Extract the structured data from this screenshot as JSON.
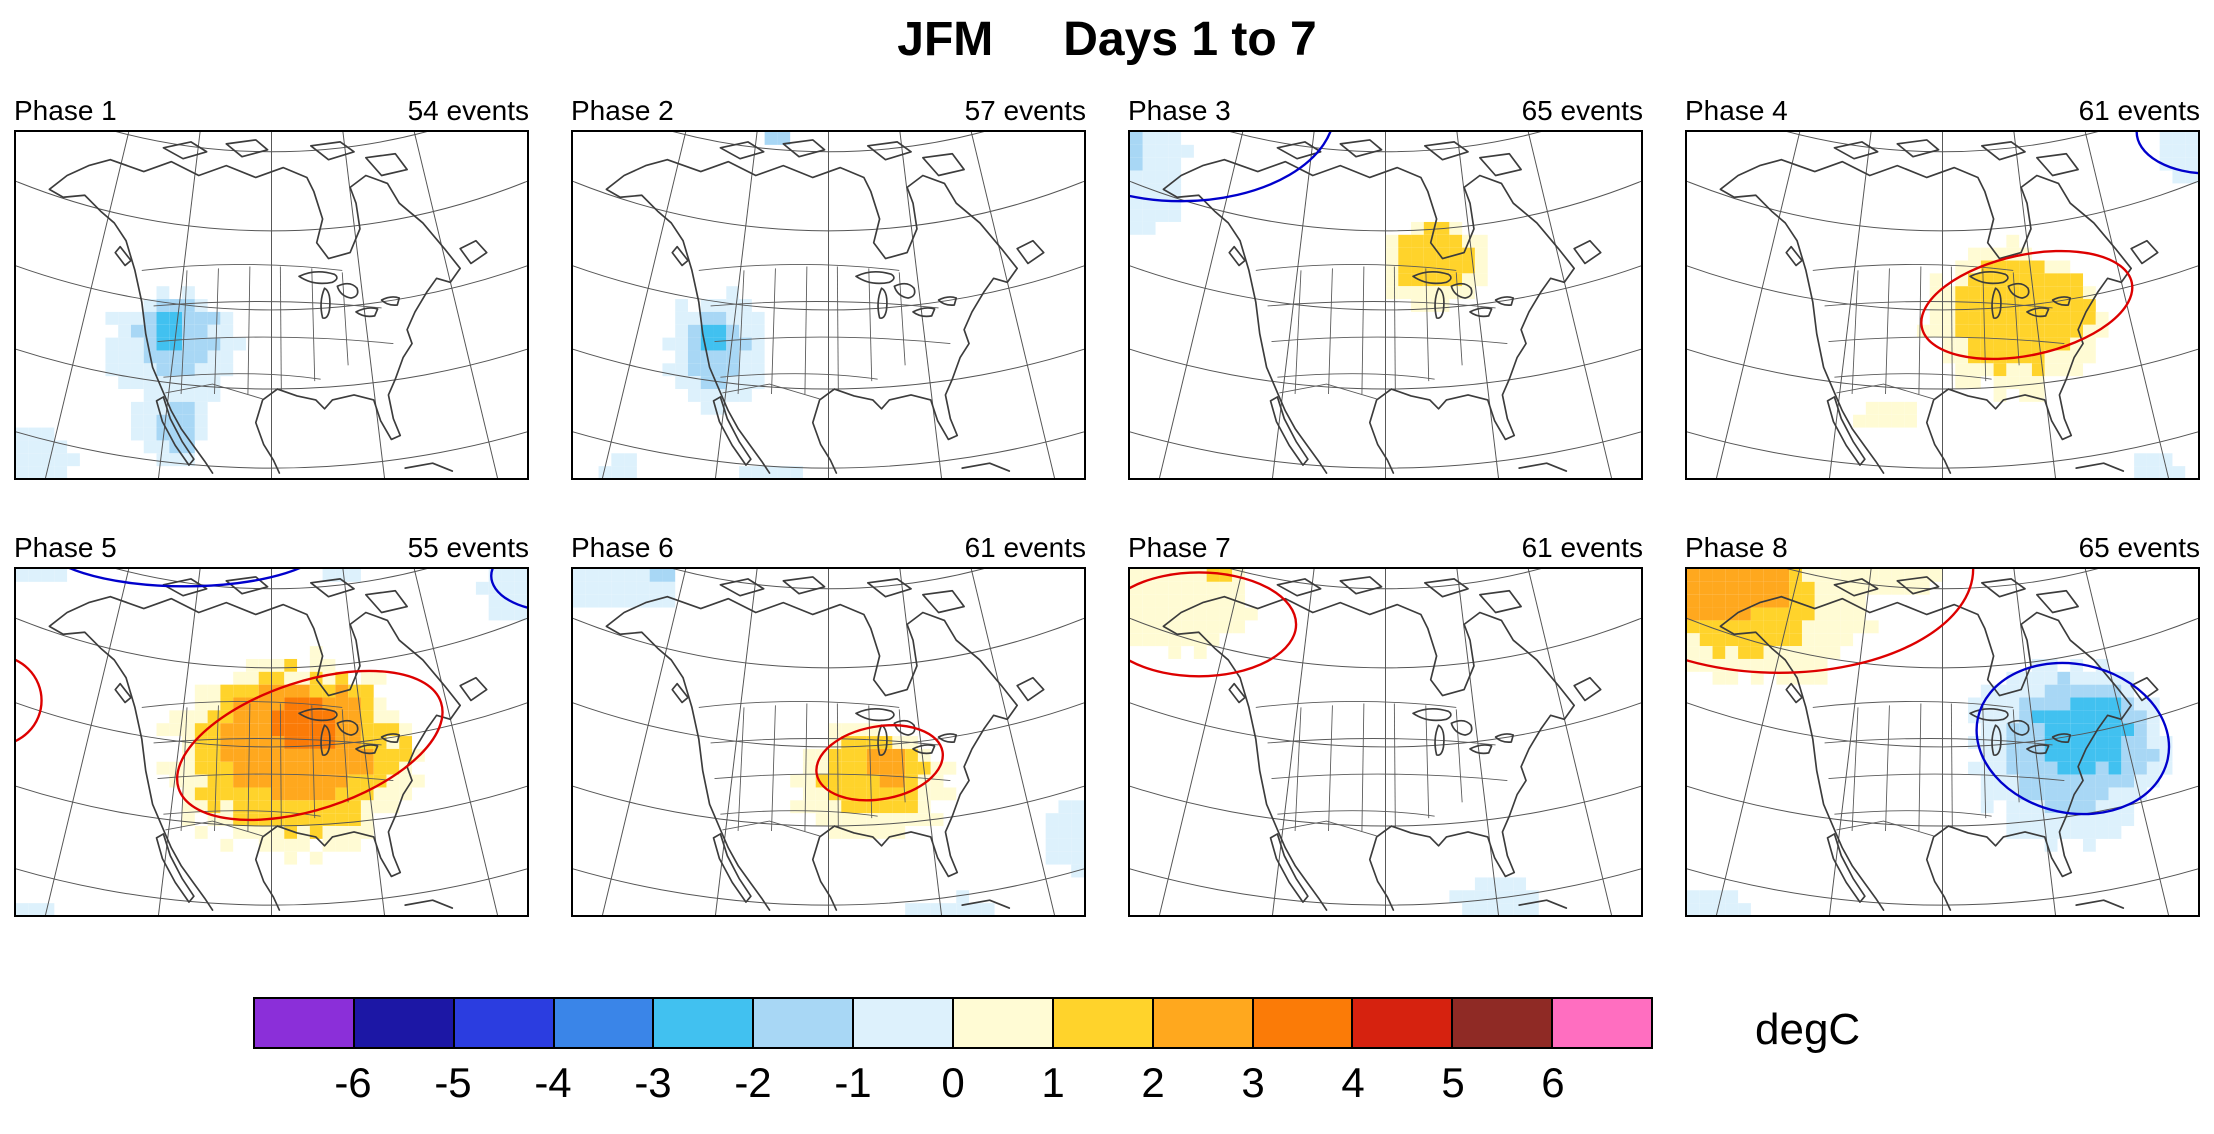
{
  "title": {
    "season": "JFM",
    "range": "Days 1 to 7"
  },
  "chart_data": {
    "type": "heatmap",
    "title": "JFM Days 1 to 7",
    "map_region": "North America",
    "panels": [
      {
        "phase": "Phase 1",
        "events_label": "54 events",
        "n_events": 54,
        "anomaly_regions": [
          {
            "v": -0.5,
            "cx": 0.31,
            "cy": 0.625,
            "rx": 0.13,
            "ry": 0.165
          },
          {
            "v": -1.5,
            "cx": 0.315,
            "cy": 0.6,
            "rx": 0.085,
            "ry": 0.105
          },
          {
            "v": -2.5,
            "cx": 0.3,
            "cy": 0.575,
            "rx": 0.035,
            "ry": 0.05
          },
          {
            "v": -0.5,
            "cx": 0.3,
            "cy": 0.85,
            "rx": 0.07,
            "ry": 0.11
          },
          {
            "v": -1.5,
            "cx": 0.315,
            "cy": 0.85,
            "rx": 0.035,
            "ry": 0.075
          },
          {
            "v": -0.5,
            "cx": 0.04,
            "cy": 0.93,
            "rx": 0.075,
            "ry": 0.07
          }
        ],
        "contours": []
      },
      {
        "phase": "Phase 2",
        "events_label": "57 events",
        "n_events": 57,
        "anomaly_regions": [
          {
            "v": -0.5,
            "cx": 0.285,
            "cy": 0.64,
            "rx": 0.105,
            "ry": 0.165
          },
          {
            "v": -1.5,
            "cx": 0.28,
            "cy": 0.635,
            "rx": 0.06,
            "ry": 0.11
          },
          {
            "v": -2.5,
            "cx": 0.275,
            "cy": 0.6,
            "rx": 0.028,
            "ry": 0.045
          },
          {
            "v": -1.5,
            "cx": 0.4,
            "cy": 0.01,
            "rx": 0.028,
            "ry": 0.022
          },
          {
            "v": -0.5,
            "cx": 0.38,
            "cy": 0.99,
            "rx": 0.06,
            "ry": 0.035
          },
          {
            "v": -0.5,
            "cx": 0.1,
            "cy": 0.97,
            "rx": 0.04,
            "ry": 0.03
          }
        ],
        "contours": []
      },
      {
        "phase": "Phase 3",
        "events_label": "65 events",
        "n_events": 65,
        "anomaly_regions": [
          {
            "v": 0.5,
            "cx": 0.595,
            "cy": 0.385,
            "rx": 0.105,
            "ry": 0.13
          },
          {
            "v": 1.5,
            "cx": 0.595,
            "cy": 0.37,
            "rx": 0.075,
            "ry": 0.095
          },
          {
            "v": -0.5,
            "cx": 0.02,
            "cy": 0.1,
            "rx": 0.09,
            "ry": 0.2
          },
          {
            "v": -1.5,
            "cx": 0.0,
            "cy": 0.04,
            "rx": 0.03,
            "ry": 0.06
          }
        ],
        "contours": [
          {
            "color": "blue",
            "cx": 0.1,
            "cy": -0.06,
            "rx": 0.3,
            "ry": 0.26,
            "rot": 0
          }
        ]
      },
      {
        "phase": "Phase 4",
        "events_label": "61 events",
        "n_events": 61,
        "anomaly_regions": [
          {
            "v": 0.5,
            "cx": 0.64,
            "cy": 0.545,
            "rx": 0.175,
            "ry": 0.215
          },
          {
            "v": 1.5,
            "cx": 0.65,
            "cy": 0.525,
            "rx": 0.13,
            "ry": 0.16
          },
          {
            "v": 0.5,
            "cx": 0.4,
            "cy": 0.82,
            "rx": 0.06,
            "ry": 0.05
          },
          {
            "v": -0.5,
            "cx": 0.985,
            "cy": 0.05,
            "rx": 0.075,
            "ry": 0.085
          },
          {
            "v": -0.5,
            "cx": 0.92,
            "cy": 0.97,
            "rx": 0.05,
            "ry": 0.035
          }
        ],
        "contours": [
          {
            "color": "red",
            "cx": 0.665,
            "cy": 0.5,
            "rx": 0.21,
            "ry": 0.145,
            "rot": -12
          },
          {
            "color": "blue",
            "cx": 1.02,
            "cy": 0.0,
            "rx": 0.14,
            "ry": 0.12,
            "rot": 0
          }
        ]
      },
      {
        "phase": "Phase 5",
        "events_label": "55 events",
        "n_events": 55,
        "anomaly_regions": [
          {
            "v": 0.5,
            "cx": 0.545,
            "cy": 0.545,
            "rx": 0.245,
            "ry": 0.275
          },
          {
            "v": 1.5,
            "cx": 0.545,
            "cy": 0.525,
            "rx": 0.2,
            "ry": 0.225
          },
          {
            "v": 2.5,
            "cx": 0.55,
            "cy": 0.5,
            "rx": 0.145,
            "ry": 0.165
          },
          {
            "v": 3.5,
            "cx": 0.565,
            "cy": 0.455,
            "rx": 0.065,
            "ry": 0.08
          },
          {
            "v": -0.5,
            "cx": 0.97,
            "cy": 0.06,
            "rx": 0.07,
            "ry": 0.09
          },
          {
            "v": -0.5,
            "cx": 0.63,
            "cy": 0.01,
            "rx": 0.05,
            "ry": 0.025
          },
          {
            "v": -0.5,
            "cx": 0.05,
            "cy": 0.01,
            "rx": 0.05,
            "ry": 0.03
          },
          {
            "v": -0.5,
            "cx": 0.03,
            "cy": 0.99,
            "rx": 0.05,
            "ry": 0.03
          }
        ],
        "contours": [
          {
            "color": "red",
            "cx": 0.575,
            "cy": 0.51,
            "rx": 0.27,
            "ry": 0.185,
            "rot": -18
          },
          {
            "color": "red",
            "cx": -0.04,
            "cy": 0.38,
            "rx": 0.09,
            "ry": 0.13,
            "rot": 0
          },
          {
            "color": "blue",
            "cx": 0.33,
            "cy": -0.08,
            "rx": 0.28,
            "ry": 0.13,
            "rot": 0
          },
          {
            "color": "blue",
            "cx": 1.05,
            "cy": 0.02,
            "rx": 0.12,
            "ry": 0.1,
            "rot": 0
          }
        ]
      },
      {
        "phase": "Phase 6",
        "events_label": "61 events",
        "n_events": 61,
        "anomaly_regions": [
          {
            "v": 0.5,
            "cx": 0.585,
            "cy": 0.615,
            "rx": 0.15,
            "ry": 0.165
          },
          {
            "v": 1.5,
            "cx": 0.595,
            "cy": 0.6,
            "rx": 0.1,
            "ry": 0.115
          },
          {
            "v": 2.5,
            "cx": 0.61,
            "cy": 0.565,
            "rx": 0.042,
            "ry": 0.055
          },
          {
            "v": -0.5,
            "cx": 0.09,
            "cy": 0.05,
            "rx": 0.11,
            "ry": 0.075
          },
          {
            "v": -1.5,
            "cx": 0.175,
            "cy": 0.015,
            "rx": 0.03,
            "ry": 0.025
          },
          {
            "v": -0.5,
            "cx": 0.985,
            "cy": 0.78,
            "rx": 0.055,
            "ry": 0.105
          },
          {
            "v": -0.5,
            "cx": 0.74,
            "cy": 0.985,
            "rx": 0.075,
            "ry": 0.04
          }
        ],
        "contours": [
          {
            "color": "red",
            "cx": 0.6,
            "cy": 0.56,
            "rx": 0.125,
            "ry": 0.105,
            "rot": -10
          }
        ]
      },
      {
        "phase": "Phase 7",
        "events_label": "61 events",
        "n_events": 61,
        "anomaly_regions": [
          {
            "v": 0.5,
            "cx": 0.09,
            "cy": 0.1,
            "rx": 0.15,
            "ry": 0.135
          },
          {
            "v": 1.5,
            "cx": 0.175,
            "cy": 0.015,
            "rx": 0.028,
            "ry": 0.025
          },
          {
            "v": -0.5,
            "cx": 0.72,
            "cy": 0.96,
            "rx": 0.085,
            "ry": 0.055
          }
        ],
        "contours": [
          {
            "color": "red",
            "cx": 0.135,
            "cy": 0.16,
            "rx": 0.19,
            "ry": 0.15,
            "rot": 0
          }
        ]
      },
      {
        "phase": "Phase 8",
        "events_label": "65 events",
        "n_events": 65,
        "anomaly_regions": [
          {
            "v": 0.5,
            "cx": 0.14,
            "cy": 0.14,
            "rx": 0.21,
            "ry": 0.2
          },
          {
            "v": 1.5,
            "cx": 0.115,
            "cy": 0.095,
            "rx": 0.16,
            "ry": 0.15
          },
          {
            "v": 2.5,
            "cx": 0.085,
            "cy": 0.05,
            "rx": 0.115,
            "ry": 0.1
          },
          {
            "v": 0.5,
            "cx": 0.37,
            "cy": 0.03,
            "rx": 0.12,
            "ry": 0.05
          },
          {
            "v": -0.5,
            "cx": 0.745,
            "cy": 0.53,
            "rx": 0.2,
            "ry": 0.26
          },
          {
            "v": -1.5,
            "cx": 0.76,
            "cy": 0.51,
            "rx": 0.145,
            "ry": 0.185
          },
          {
            "v": -2.5,
            "cx": 0.775,
            "cy": 0.48,
            "rx": 0.09,
            "ry": 0.115
          },
          {
            "v": -0.5,
            "cx": 0.06,
            "cy": 0.97,
            "rx": 0.06,
            "ry": 0.04
          }
        ],
        "contours": [
          {
            "color": "blue",
            "cx": 0.755,
            "cy": 0.49,
            "rx": 0.19,
            "ry": 0.215,
            "rot": 12
          },
          {
            "color": "red",
            "cx": 0.18,
            "cy": 0.0,
            "rx": 0.38,
            "ry": 0.3,
            "rot": 0
          }
        ]
      }
    ],
    "colorbar": {
      "label": "degC",
      "ticks": [
        -6,
        -5,
        -4,
        -3,
        -2,
        -1,
        0,
        1,
        2,
        3,
        4,
        5,
        6
      ],
      "bin_edges": [
        -7,
        -6,
        -5,
        -4,
        -3,
        -2,
        -1,
        0,
        1,
        2,
        3,
        4,
        5,
        6,
        7
      ],
      "colors": [
        "#8b2fd9",
        "#1c17a5",
        "#2b3de0",
        "#3a85e8",
        "#41c1f0",
        "#a8d7f5",
        "#ddf1fc",
        "#fffbd4",
        "#ffd32b",
        "#ffa81e",
        "#fb7b07",
        "#d6220f",
        "#8f2a25",
        "#ff6ec0"
      ]
    },
    "contour_line_colors": {
      "red": "#dd0000",
      "blue": "#0000cc"
    }
  }
}
